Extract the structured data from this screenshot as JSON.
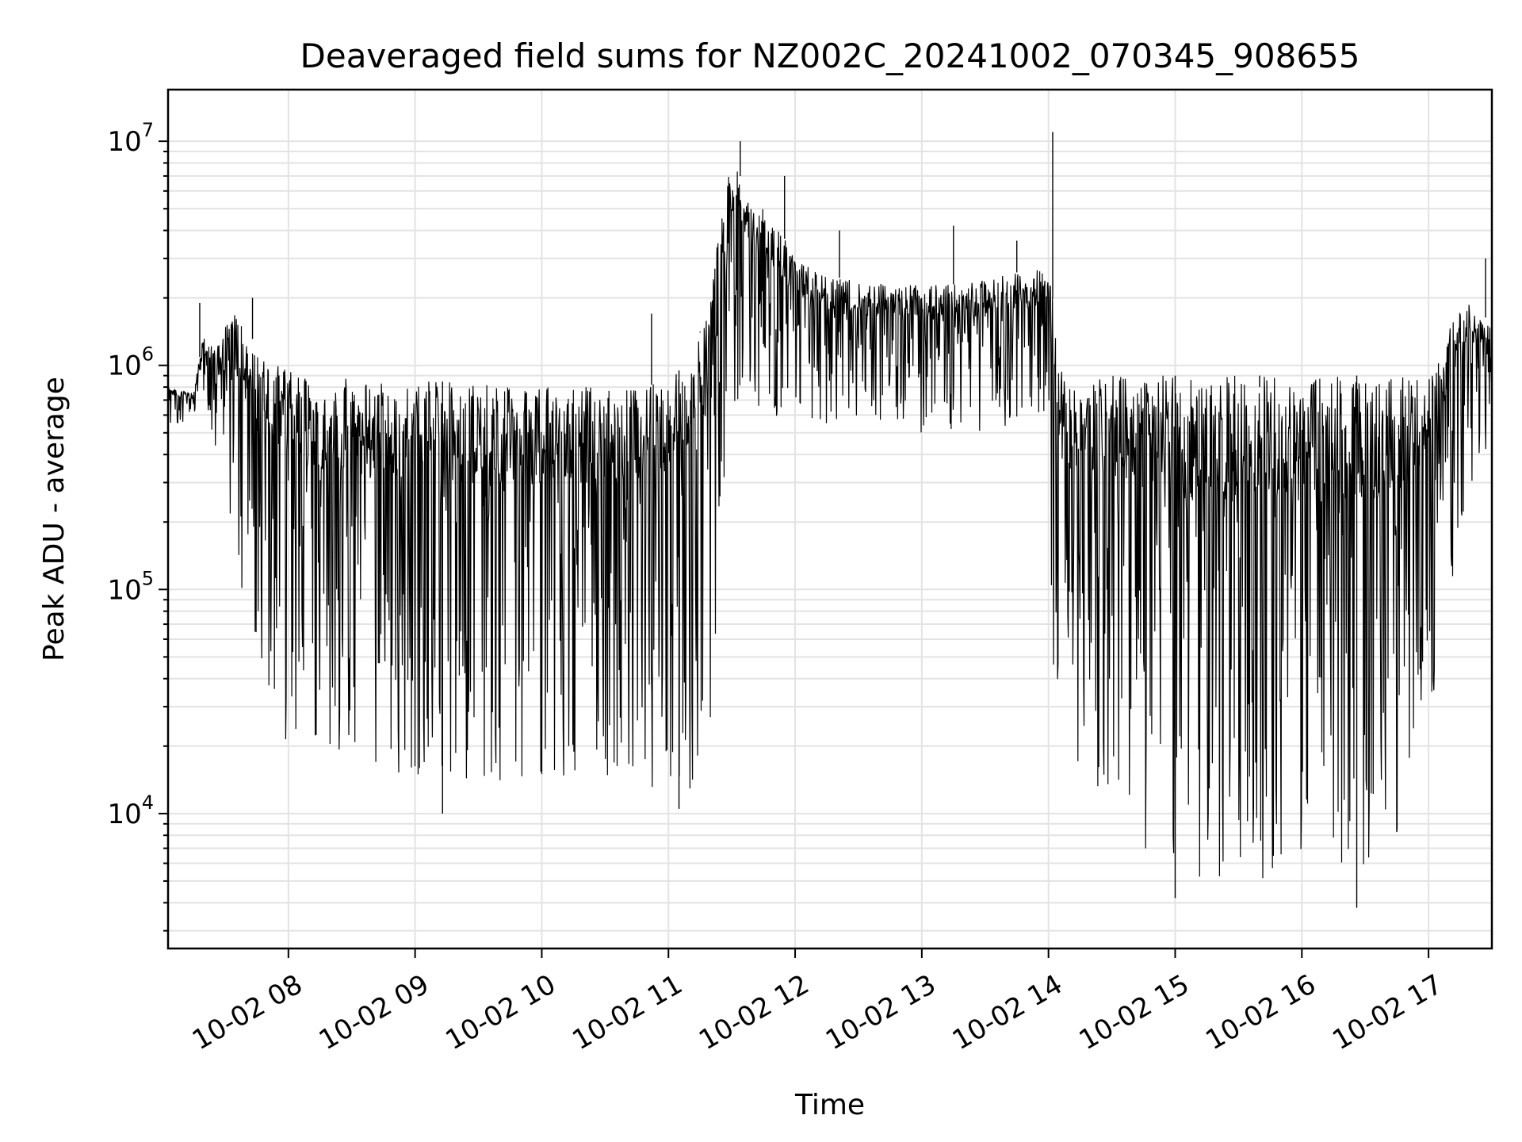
{
  "chart_data": {
    "type": "line",
    "title": "Deaveraged field sums for NZ002C_20241002_070345_908655",
    "xlabel": "Time",
    "ylabel": "Peak ADU - average",
    "yscale": "log",
    "ylim": [
      2500,
      17000000
    ],
    "xlim": [
      "2024-10-02 07:03",
      "2024-10-02 17:30"
    ],
    "grid": true,
    "line_color": "#000000",
    "x_ticks": [
      "10-02 08",
      "10-02 09",
      "10-02 10",
      "10-02 11",
      "10-02 12",
      "10-02 13",
      "10-02 14",
      "10-02 15",
      "10-02 16",
      "10-02 17"
    ],
    "y_ticks": [
      {
        "base": "10",
        "exp": "4",
        "value": 10000
      },
      {
        "base": "10",
        "exp": "5",
        "value": 100000
      },
      {
        "base": "10",
        "exp": "6",
        "value": 1000000
      },
      {
        "base": "10",
        "exp": "7",
        "value": 10000000
      }
    ],
    "series": [
      {
        "description_of_envelope": "",
        "x": [
          "07:03",
          "07:15",
          "07:20",
          "07:25",
          "07:30",
          "07:35",
          "07:40",
          "07:45",
          "07:50",
          "07:55",
          "08:00",
          "08:10",
          "08:20",
          "08:30",
          "08:40",
          "08:50",
          "09:00",
          "09:10",
          "09:20",
          "09:30",
          "09:40",
          "09:50",
          "10:00",
          "10:10",
          "10:20",
          "10:30",
          "10:40",
          "10:50",
          "11:00",
          "11:10",
          "11:20",
          "11:28",
          "11:32",
          "11:35",
          "11:40",
          "11:45",
          "11:50",
          "12:00",
          "12:15",
          "12:30",
          "12:45",
          "13:00",
          "13:15",
          "13:30",
          "13:45",
          "14:00",
          "14:02",
          "14:05",
          "14:10",
          "14:20",
          "14:30",
          "14:40",
          "14:50",
          "15:00",
          "15:10",
          "15:20",
          "15:30",
          "15:40",
          "15:50",
          "16:00",
          "16:10",
          "16:20",
          "16:30",
          "16:40",
          "16:50",
          "17:00",
          "17:10",
          "17:20",
          "17:30"
        ],
        "upper": [
          800000,
          750000,
          1400000,
          1200000,
          1500000,
          1700000,
          1500000,
          1200000,
          1050000,
          1000000,
          950000,
          950000,
          900000,
          880000,
          860000,
          850000,
          850000,
          850000,
          840000,
          820000,
          820000,
          820000,
          800000,
          800000,
          820000,
          800000,
          800000,
          800000,
          900000,
          1000000,
          2000000,
          8000000,
          9500000,
          6000000,
          5500000,
          5000000,
          4500000,
          3000000,
          2500000,
          2400000,
          2300000,
          2300000,
          2300000,
          2400000,
          2600000,
          2800000,
          2000000,
          1000000,
          900000,
          900000,
          900000,
          900000,
          900000,
          900000,
          900000,
          900000,
          900000,
          900000,
          900000,
          900000,
          900000,
          900000,
          900000,
          900000,
          900000,
          900000,
          1500000,
          2000000,
          1500000
        ],
        "lower": [
          500000,
          600000,
          600000,
          300000,
          200000,
          150000,
          60000,
          40000,
          30000,
          22000,
          20000,
          18000,
          17000,
          16000,
          15000,
          14000,
          14000,
          14000,
          14000,
          14000,
          14000,
          14000,
          14000,
          14000,
          14000,
          14000,
          14000,
          13000,
          13000,
          12000,
          14000,
          600000,
          700000,
          700000,
          700000,
          600000,
          600000,
          550000,
          550000,
          550000,
          550000,
          500000,
          500000,
          500000,
          550000,
          600000,
          30000,
          22000,
          18000,
          15000,
          10000,
          6500,
          5500,
          5000,
          5000,
          5000,
          5000,
          5000,
          5000,
          5000,
          5000,
          5000,
          5200,
          6000,
          9000,
          25000,
          80000,
          300000,
          400000
        ],
        "spikes": [
          {
            "x": "07:18",
            "value": 1900000
          },
          {
            "x": "07:43",
            "value": 2000000
          },
          {
            "x": "10:52",
            "value": 1700000
          },
          {
            "x": "11:15",
            "value": 1400000
          },
          {
            "x": "11:23",
            "value": 1700000
          },
          {
            "x": "11:34",
            "value": 10000000
          },
          {
            "x": "11:55",
            "value": 7000000
          },
          {
            "x": "12:21",
            "value": 4000000
          },
          {
            "x": "13:15",
            "value": 4200000
          },
          {
            "x": "13:45",
            "value": 3600000
          },
          {
            "x": "14:02",
            "value": 11000000
          },
          {
            "x": "15:40",
            "value": 800000
          },
          {
            "x": "17:27",
            "value": 3000000
          }
        ],
        "minima": [
          {
            "x": "09:13",
            "value": 10000
          },
          {
            "x": "11:05",
            "value": 10500
          },
          {
            "x": "15:00",
            "value": 4200
          },
          {
            "x": "16:26",
            "value": 3800
          }
        ]
      }
    ]
  }
}
